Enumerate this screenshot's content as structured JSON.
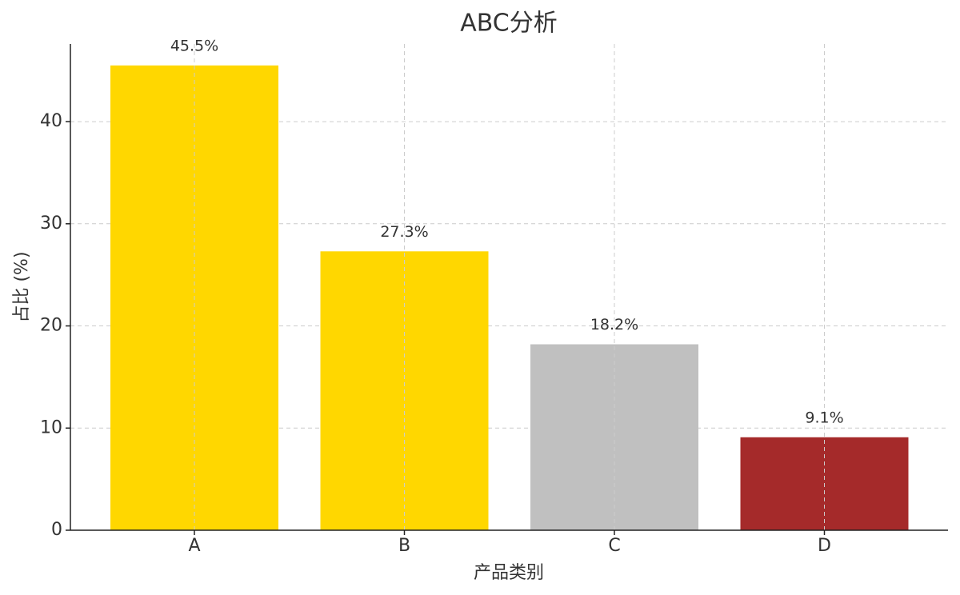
{
  "chart_data": {
    "type": "bar",
    "title": "ABC分析",
    "x_label": "产品类别",
    "y_label": "占比 (%)",
    "categories": [
      "A",
      "B",
      "C",
      "D"
    ],
    "values": [
      45.5,
      27.3,
      18.2,
      9.1
    ],
    "value_labels": [
      "45.5%",
      "27.3%",
      "18.2%",
      "9.1%"
    ],
    "colors": [
      "#ffd700",
      "#ffd700",
      "#c0c0c0",
      "#a52a2a"
    ],
    "ylim": [
      0,
      47.6
    ],
    "yticks": [
      0,
      10,
      20,
      30,
      40
    ],
    "grid": true
  }
}
